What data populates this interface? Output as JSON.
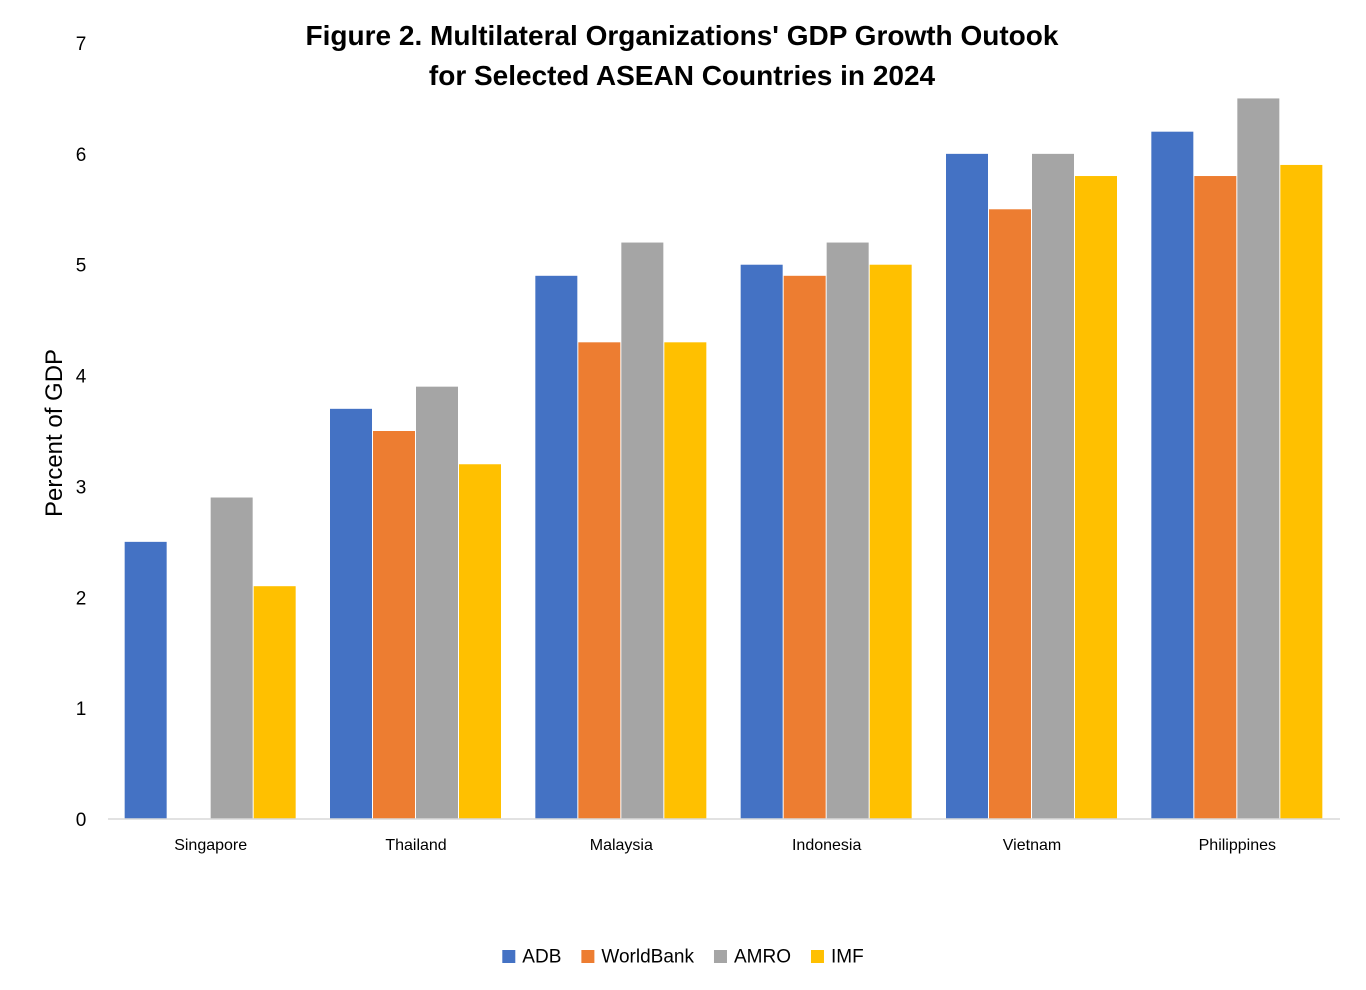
{
  "chart_data": {
    "type": "bar",
    "title": "Figure 2. Multilateral Organizations' GDP Growth Outook for Selected ASEAN Countries in 2024",
    "title_lines": [
      "Figure 2. Multilateral Organizations' GDP Growth Outook",
      "for Selected ASEAN Countries in 2024"
    ],
    "xlabel": "",
    "ylabel": "Percent of GDP",
    "ylim": [
      0,
      7
    ],
    "yticks": [
      0,
      1,
      2,
      3,
      4,
      5,
      6,
      7
    ],
    "grid": false,
    "legend_position": "bottom-center",
    "categories": [
      "Singapore",
      "Thailand",
      "Malaysia",
      "Indonesia",
      "Vietnam",
      "Philippines"
    ],
    "series": [
      {
        "name": "ADB",
        "color": "#4472C4",
        "values": [
          2.5,
          3.7,
          4.9,
          5.0,
          6.0,
          6.2
        ]
      },
      {
        "name": "WorldBank",
        "color": "#ED7D31",
        "values": [
          null,
          3.5,
          4.3,
          4.9,
          5.5,
          5.8
        ]
      },
      {
        "name": "AMRO",
        "color": "#A5A5A5",
        "values": [
          2.9,
          3.9,
          5.2,
          5.2,
          6.0,
          6.5
        ]
      },
      {
        "name": "IMF",
        "color": "#FFC000",
        "values": [
          2.1,
          3.2,
          4.3,
          5.0,
          5.8,
          5.9
        ]
      }
    ]
  }
}
